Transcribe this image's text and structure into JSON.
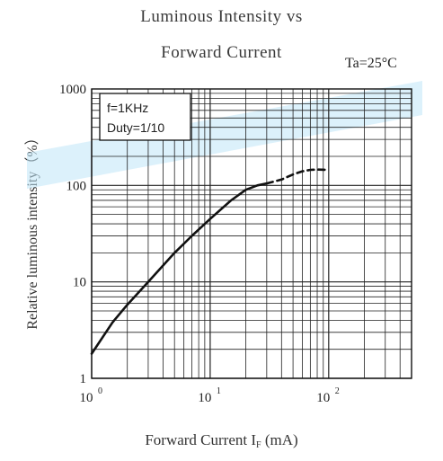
{
  "chart_data": {
    "type": "line",
    "title_line1": "Luminous Intensity vs",
    "title_line2": "Forward Current",
    "condition": "Ta=25°C",
    "ylabel": "Relative luminous intensity（%）",
    "xlabel_main": "Forward Current",
    "xlabel_symbol": "I",
    "xlabel_subscript": "F",
    "xlabel_unit": "(mA)",
    "x_scale": "log",
    "y_scale": "log",
    "xlim": [
      1,
      500
    ],
    "ylim": [
      1,
      1000
    ],
    "x_ticks": [
      {
        "value": 1,
        "label": "10",
        "exp": "0"
      },
      {
        "value": 10,
        "label": "10",
        "exp": "1"
      },
      {
        "value": 100,
        "label": "10",
        "exp": "2"
      }
    ],
    "y_ticks": [
      {
        "value": 1,
        "label": "1"
      },
      {
        "value": 10,
        "label": "10"
      },
      {
        "value": 100,
        "label": "100"
      },
      {
        "value": 1000,
        "label": "1000"
      }
    ],
    "grid": true,
    "annotation_lines": [
      "f=1KHz",
      "Duty=1/10"
    ],
    "series": [
      {
        "style": "solid",
        "x": [
          1,
          1.5,
          2,
          3,
          5,
          7,
          10,
          15,
          20,
          25,
          30
        ],
        "y": [
          1.8,
          3.8,
          5.8,
          10,
          20,
          30,
          45,
          70,
          90,
          100,
          105
        ]
      },
      {
        "style": "dashed",
        "x": [
          30,
          40,
          50,
          60,
          70,
          80,
          100
        ],
        "y": [
          105,
          115,
          130,
          140,
          145,
          146,
          145
        ]
      }
    ]
  }
}
